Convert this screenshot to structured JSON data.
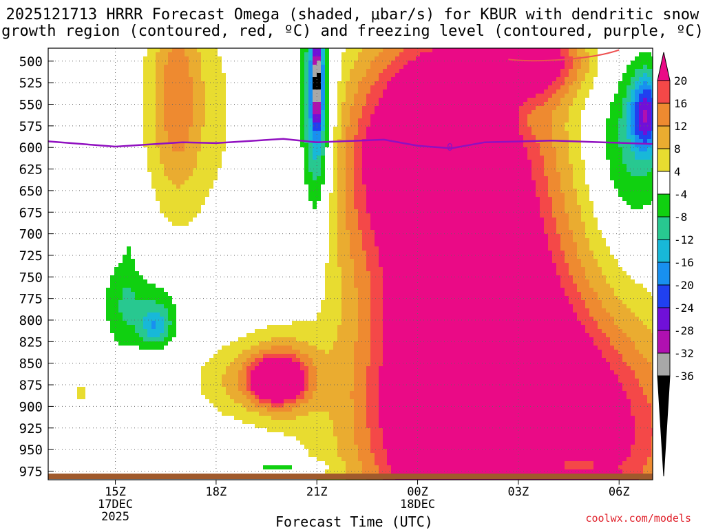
{
  "header": {
    "line1": "2025121713 HRRR Forecast Omega (shaded, μbar/s) for KBUR with dendritic snow",
    "line2": "growth region (contoured, red, ºC) and freezing level (contoured, purple, ºC)"
  },
  "footer": {
    "credit": "coolwx.com/models"
  },
  "chart_data": {
    "type": "heatmap",
    "title": "2025121713 HRRR Forecast Omega (shaded, μbar/s) for KBUR with dendritic snow growth region (contoured, red, ºC) and freezing level (contoured, purple, ºC)",
    "xlabel": "Forecast Time (UTC)",
    "ylabel": "",
    "x_ticks": [
      {
        "hour": 15,
        "label": "15Z",
        "sub": [
          "17DEC",
          "2025"
        ]
      },
      {
        "hour": 18,
        "label": "18Z",
        "sub": []
      },
      {
        "hour": 21,
        "label": "21Z",
        "sub": []
      },
      {
        "hour": 24,
        "label": "00Z",
        "sub": [
          "18DEC"
        ]
      },
      {
        "hour": 27,
        "label": "03Z",
        "sub": []
      },
      {
        "hour": 30,
        "label": "06Z",
        "sub": []
      }
    ],
    "xlim": [
      13,
      31
    ],
    "y_ticks": [
      500,
      525,
      550,
      575,
      600,
      625,
      650,
      675,
      700,
      725,
      750,
      775,
      800,
      825,
      850,
      875,
      900,
      925,
      950,
      975
    ],
    "ylim": [
      985,
      485
    ],
    "colorbar": {
      "labels": [
        "20",
        "16",
        "12",
        "8",
        "4",
        "-4",
        "-8",
        "-12",
        "-16",
        "-20",
        "-24",
        "-28",
        "-32",
        "-36"
      ],
      "levels": [
        {
          "min": 20,
          "color": "#ea0a86"
        },
        {
          "min": 16,
          "color": "#f44848"
        },
        {
          "min": 12,
          "color": "#ee8a30"
        },
        {
          "min": 8,
          "color": "#eaac30"
        },
        {
          "min": 4,
          "color": "#e8dc30"
        },
        {
          "min": -4,
          "color": "#ffffff"
        },
        {
          "min": -8,
          "color": "#10d010"
        },
        {
          "min": -12,
          "color": "#28c890"
        },
        {
          "min": -16,
          "color": "#18b8d8"
        },
        {
          "min": -20,
          "color": "#1890f0"
        },
        {
          "min": -24,
          "color": "#2040f0"
        },
        {
          "min": -28,
          "color": "#7010d8"
        },
        {
          "min": -32,
          "color": "#b010b0"
        },
        {
          "min": -36,
          "color": "#a8a8a8"
        },
        {
          "min": -99,
          "color": "#000000"
        }
      ]
    },
    "freezing_level": {
      "label": "0",
      "color": "#9010c0",
      "points": [
        [
          13,
          593
        ],
        [
          15,
          599
        ],
        [
          17,
          594
        ],
        [
          18,
          595
        ],
        [
          20,
          590
        ],
        [
          21,
          594
        ],
        [
          23,
          591
        ],
        [
          24,
          598
        ],
        [
          25,
          601
        ],
        [
          26,
          594
        ],
        [
          28,
          592
        ],
        [
          31,
          596
        ]
      ]
    },
    "dgz_color": "#ee5050",
    "ground_color": "#a05a2c",
    "omega_features": [
      {
        "hour": 16.8,
        "pressure": 540,
        "dt": 0.75,
        "dp": 115,
        "value": 11
      },
      {
        "hour": 17.4,
        "pressure": 560,
        "dt": 1.7,
        "dp": 150,
        "value": 5
      },
      {
        "hour": 15.1,
        "pressure": 680,
        "dt": 0.25,
        "dp": 70,
        "value": 5
      },
      {
        "hour": 14.0,
        "pressure": 885,
        "dt": 0.3,
        "dp": 14,
        "value": 5
      },
      {
        "hour": 15.9,
        "pressure": 788,
        "dt": 1.2,
        "dp": 45,
        "value": -7
      },
      {
        "hour": 16.2,
        "pressure": 808,
        "dt": 0.45,
        "dp": 22,
        "value": -11
      },
      {
        "hour": 15.2,
        "pressure": 725,
        "dt": 0.45,
        "dp": 95,
        "value": -6
      },
      {
        "hour": 21.0,
        "pressure": 565,
        "dt": 0.65,
        "dp": 150,
        "value": -9
      },
      {
        "hour": 21.0,
        "pressure": 560,
        "dt": 0.38,
        "dp": 110,
        "value": -13
      },
      {
        "hour": 21.0,
        "pressure": 522,
        "dt": 0.15,
        "dp": 50,
        "value": -25
      },
      {
        "hour": 25.8,
        "pressure": 800,
        "dt": 2.8,
        "dp": 270,
        "value": 34
      },
      {
        "hour": 27.5,
        "pressure": 930,
        "dt": 4.5,
        "dp": 130,
        "value": 28
      },
      {
        "hour": 24.0,
        "pressure": 620,
        "dt": 2.5,
        "dp": 110,
        "value": 15
      },
      {
        "hour": 23.1,
        "pressure": 608,
        "dt": 0.45,
        "dp": 22,
        "value": 21
      },
      {
        "hour": 25.0,
        "pressure": 535,
        "dt": 2.2,
        "dp": 80,
        "value": 11
      },
      {
        "hour": 27.5,
        "pressure": 500,
        "dt": 1.5,
        "dp": 40,
        "value": 20
      },
      {
        "hour": 20.0,
        "pressure": 865,
        "dt": 1.0,
        "dp": 42,
        "value": 15
      },
      {
        "hour": 19.8,
        "pressure": 870,
        "dt": 0.7,
        "dp": 22,
        "value": 21
      },
      {
        "hour": 18.8,
        "pressure": 870,
        "dt": 1.5,
        "dp": 45,
        "value": 8
      },
      {
        "hour": 23.4,
        "pressure": 650,
        "dt": 2.6,
        "dp": 200,
        "value": 5
      },
      {
        "hour": 27.2,
        "pressure": 565,
        "dt": 0.5,
        "dp": 28,
        "value": -3
      },
      {
        "hour": 30.3,
        "pressure": 600,
        "dt": 1.2,
        "dp": 100,
        "value": -10
      },
      {
        "hour": 30.8,
        "pressure": 560,
        "dt": 0.45,
        "dp": 45,
        "value": -22
      },
      {
        "hour": 28.4,
        "pressure": 968,
        "dt": 1.0,
        "dp": 6,
        "value": -17
      },
      {
        "hour": 20.0,
        "pressure": 970,
        "dt": 1.2,
        "dp": 8,
        "value": -7
      }
    ]
  }
}
